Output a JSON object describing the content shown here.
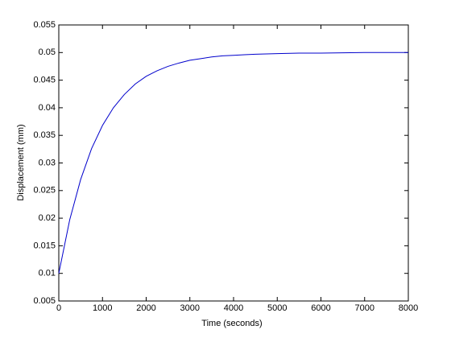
{
  "chart_data": {
    "type": "line",
    "x_label": "Time (seconds)",
    "y_label": "Displacement (mm)",
    "x": [
      0,
      250,
      500,
      750,
      1000,
      1250,
      1500,
      1750,
      2000,
      2250,
      2500,
      2750,
      3000,
      3250,
      3500,
      3750,
      4000,
      4250,
      4500,
      5000,
      5500,
      6000,
      7000,
      8000
    ],
    "series": [
      {
        "name": "Displacement",
        "color": "#0000cc",
        "values": [
          0.01,
          0.0197,
          0.027,
          0.0326,
          0.0368,
          0.04,
          0.0424,
          0.0443,
          0.0457,
          0.0467,
          0.0475,
          0.0481,
          0.0486,
          0.0489,
          0.0492,
          0.0494,
          0.0495,
          0.0496,
          0.0497,
          0.0498,
          0.0499,
          0.0499,
          0.05,
          0.05
        ]
      }
    ],
    "xlim": [
      0,
      8000
    ],
    "xticks": [
      0,
      1000,
      2000,
      3000,
      4000,
      5000,
      6000,
      7000,
      8000
    ],
    "ylim": [
      0.005,
      0.055
    ],
    "yticks": [
      0.005,
      0.01,
      0.015,
      0.02,
      0.025,
      0.03,
      0.035,
      0.04,
      0.045,
      0.05,
      0.055
    ],
    "grid": false
  }
}
